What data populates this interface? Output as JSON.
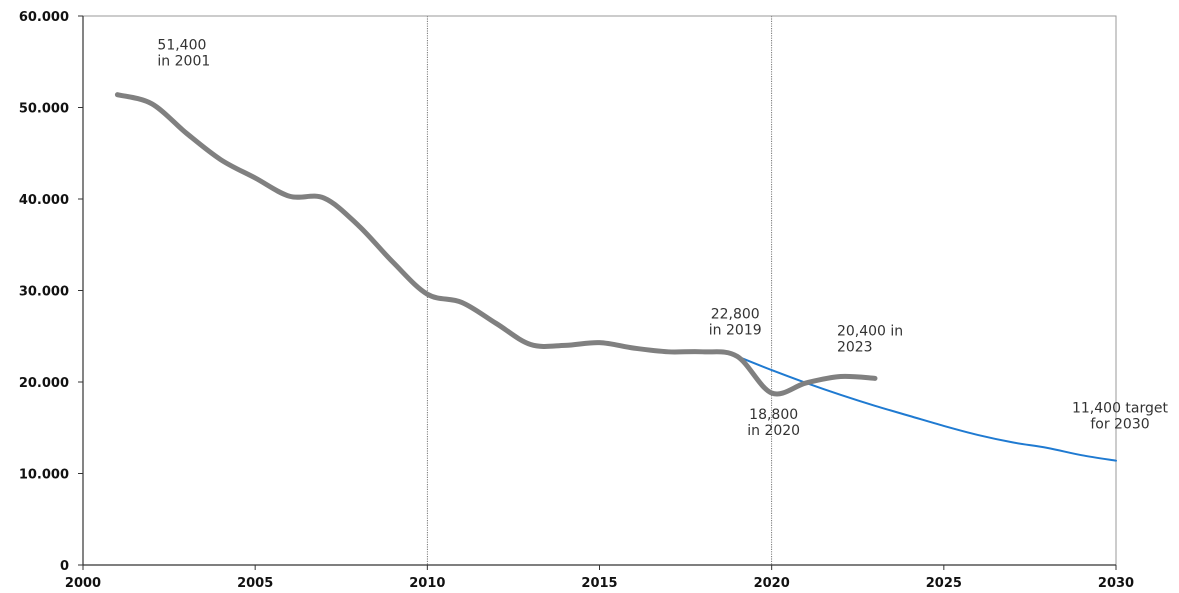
{
  "chart_data": {
    "type": "line",
    "title": "",
    "xlabel": "",
    "ylabel": "",
    "xlim": [
      2000,
      2030
    ],
    "ylim": [
      0,
      60000
    ],
    "x_ticks": [
      2000,
      2005,
      2010,
      2015,
      2020,
      2025,
      2030
    ],
    "x_tick_labels": [
      "2000",
      "2005",
      "2010",
      "2015",
      "2020",
      "2025",
      "2030"
    ],
    "y_ticks": [
      0,
      10000,
      20000,
      30000,
      40000,
      50000,
      60000
    ],
    "y_tick_labels": [
      "0",
      "10.000",
      "20.000",
      "30.000",
      "40.000",
      "50.000",
      "60.000"
    ],
    "grid": "vertical lines at 2010 and 2020",
    "series": [
      {
        "color": "#808080",
        "x": [
          2001,
          2002,
          2003,
          2004,
          2005,
          2006,
          2007,
          2008,
          2009,
          2010,
          2011,
          2012,
          2013,
          2014,
          2015,
          2016,
          2017,
          2018,
          2019,
          2020,
          2021,
          2022,
          2023
        ],
        "y": [
          51400,
          50400,
          47200,
          44300,
          42300,
          40300,
          40100,
          37100,
          33100,
          29600,
          28700,
          26400,
          24100,
          24000,
          24300,
          23700,
          23300,
          23300,
          22800,
          18800,
          19900,
          20600,
          20400
        ]
      },
      {
        "color": "#1f7ad1",
        "x": [
          2019,
          2020,
          2021,
          2022,
          2023,
          2024,
          2025,
          2026,
          2027,
          2028,
          2029,
          2030
        ],
        "y": [
          22800,
          21300,
          19900,
          18600,
          17400,
          16300,
          15200,
          14200,
          13400,
          12800,
          12000,
          11400
        ]
      }
    ],
    "annotations": [
      {
        "lines": [
          "51,400",
          "in 2001"
        ],
        "x": 2001,
        "y": 51400,
        "anchor": "start"
      },
      {
        "lines": [
          "22,800",
          "in 2019"
        ],
        "x": 2019,
        "y": 22800,
        "anchor": "middle"
      },
      {
        "lines": [
          "18,800",
          "in 2020"
        ],
        "x": 2020,
        "y": 18800,
        "anchor": "middle"
      },
      {
        "lines": [
          "20,400 in",
          "2023"
        ],
        "x": 2023,
        "y": 20400,
        "anchor": "start"
      },
      {
        "lines": [
          "11,400 target",
          "for 2030"
        ],
        "x": 2030,
        "y": 11400,
        "anchor": "middle"
      }
    ]
  }
}
